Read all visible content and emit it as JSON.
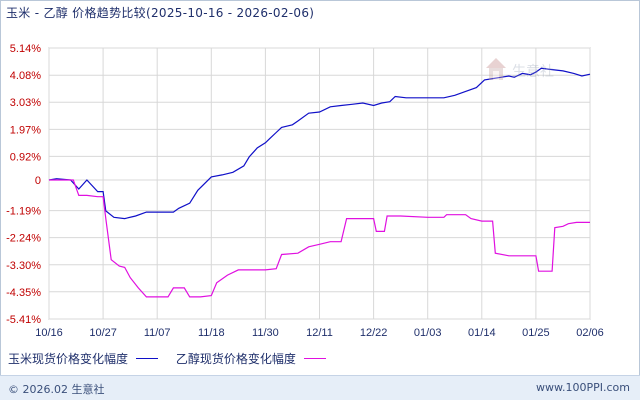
{
  "header": {
    "title": "玉米 - 乙醇 价格趋势比较(2025-10-16 - 2026-02-06)"
  },
  "chart_data": {
    "type": "line",
    "ylim": [
      -5.41,
      5.14
    ],
    "yticks": [
      5.14,
      4.08,
      3.03,
      1.97,
      0.92,
      0,
      -1.19,
      -2.24,
      -3.3,
      -4.35,
      -5.41
    ],
    "ytick_labels": [
      "5.14%",
      "4.08%",
      "3.03%",
      "1.97%",
      "0.92%",
      "0",
      "-1.19%",
      "-2.24%",
      "-3.30%",
      "-4.35%",
      "-5.41%"
    ],
    "x_categories": [
      "10/16",
      "10/27",
      "11/07",
      "11/18",
      "11/30",
      "12/11",
      "12/22",
      "01/03",
      "01/14",
      "01/25",
      "02/06"
    ],
    "grid": true,
    "legend_position": "bottom",
    "series": [
      {
        "name": "玉米现货价格变化幅度",
        "color": "#1010c8",
        "points": [
          [
            0,
            0.0
          ],
          [
            0.14,
            0.05
          ],
          [
            0.4,
            0.0
          ],
          [
            0.55,
            -0.35
          ],
          [
            0.7,
            0.0
          ],
          [
            0.9,
            -0.45
          ],
          [
            1.0,
            -0.45
          ],
          [
            1.05,
            -1.2
          ],
          [
            1.2,
            -1.45
          ],
          [
            1.4,
            -1.5
          ],
          [
            1.6,
            -1.4
          ],
          [
            1.8,
            -1.25
          ],
          [
            2.0,
            -1.25
          ],
          [
            2.3,
            -1.25
          ],
          [
            2.4,
            -1.1
          ],
          [
            2.6,
            -0.9
          ],
          [
            2.75,
            -0.4
          ],
          [
            3.0,
            0.12
          ],
          [
            3.2,
            0.2
          ],
          [
            3.4,
            0.3
          ],
          [
            3.6,
            0.55
          ],
          [
            3.7,
            0.9
          ],
          [
            3.85,
            1.25
          ],
          [
            4.0,
            1.45
          ],
          [
            4.1,
            1.65
          ],
          [
            4.2,
            1.85
          ],
          [
            4.3,
            2.05
          ],
          [
            4.5,
            2.15
          ],
          [
            4.6,
            2.3
          ],
          [
            4.8,
            2.6
          ],
          [
            5.0,
            2.65
          ],
          [
            5.2,
            2.85
          ],
          [
            5.4,
            2.9
          ],
          [
            5.6,
            2.95
          ],
          [
            5.8,
            3.0
          ],
          [
            6.0,
            2.9
          ],
          [
            6.15,
            3.0
          ],
          [
            6.3,
            3.05
          ],
          [
            6.4,
            3.25
          ],
          [
            6.6,
            3.2
          ],
          [
            6.8,
            3.2
          ],
          [
            7.0,
            3.2
          ],
          [
            7.3,
            3.2
          ],
          [
            7.5,
            3.3
          ],
          [
            7.7,
            3.45
          ],
          [
            7.9,
            3.6
          ],
          [
            8.05,
            3.9
          ],
          [
            8.2,
            3.95
          ],
          [
            8.35,
            4.0
          ],
          [
            8.5,
            4.05
          ],
          [
            8.6,
            4.0
          ],
          [
            8.75,
            4.15
          ],
          [
            8.9,
            4.1
          ],
          [
            9.0,
            4.2
          ],
          [
            9.1,
            4.35
          ],
          [
            9.3,
            4.3
          ],
          [
            9.5,
            4.25
          ],
          [
            9.7,
            4.15
          ],
          [
            9.85,
            4.05
          ],
          [
            10.0,
            4.12
          ]
        ]
      },
      {
        "name": "乙醇现货价格变化幅度",
        "color": "#e010e0",
        "points": [
          [
            0,
            0.0
          ],
          [
            0.45,
            0.0
          ],
          [
            0.55,
            -0.6
          ],
          [
            0.7,
            -0.6
          ],
          [
            0.9,
            -0.65
          ],
          [
            1.0,
            -0.65
          ],
          [
            1.05,
            -1.5
          ],
          [
            1.15,
            -3.1
          ],
          [
            1.3,
            -3.35
          ],
          [
            1.4,
            -3.4
          ],
          [
            1.5,
            -3.8
          ],
          [
            1.65,
            -4.2
          ],
          [
            1.8,
            -4.55
          ],
          [
            2.0,
            -4.55
          ],
          [
            2.2,
            -4.55
          ],
          [
            2.3,
            -4.2
          ],
          [
            2.5,
            -4.2
          ],
          [
            2.6,
            -4.55
          ],
          [
            2.8,
            -4.55
          ],
          [
            3.0,
            -4.5
          ],
          [
            3.1,
            -4.0
          ],
          [
            3.3,
            -3.7
          ],
          [
            3.5,
            -3.5
          ],
          [
            3.7,
            -3.5
          ],
          [
            4.0,
            -3.5
          ],
          [
            4.2,
            -3.45
          ],
          [
            4.3,
            -2.9
          ],
          [
            4.6,
            -2.85
          ],
          [
            4.8,
            -2.6
          ],
          [
            5.0,
            -2.5
          ],
          [
            5.2,
            -2.4
          ],
          [
            5.4,
            -2.4
          ],
          [
            5.5,
            -1.5
          ],
          [
            6.0,
            -1.5
          ],
          [
            6.05,
            -2.0
          ],
          [
            6.2,
            -2.0
          ],
          [
            6.25,
            -1.4
          ],
          [
            6.5,
            -1.4
          ],
          [
            7.0,
            -1.45
          ],
          [
            7.3,
            -1.45
          ],
          [
            7.35,
            -1.35
          ],
          [
            7.7,
            -1.35
          ],
          [
            7.8,
            -1.5
          ],
          [
            8.0,
            -1.6
          ],
          [
            8.2,
            -1.6
          ],
          [
            8.25,
            -2.85
          ],
          [
            8.5,
            -2.95
          ],
          [
            8.8,
            -2.95
          ],
          [
            9.0,
            -2.95
          ],
          [
            9.05,
            -3.55
          ],
          [
            9.3,
            -3.55
          ],
          [
            9.35,
            -1.85
          ],
          [
            9.5,
            -1.8
          ],
          [
            9.6,
            -1.7
          ],
          [
            9.75,
            -1.65
          ],
          [
            10.0,
            -1.65
          ]
        ]
      }
    ]
  },
  "legend": {
    "items": [
      {
        "label": "玉米现货价格变化幅度",
        "color": "#1010c8"
      },
      {
        "label": "乙醇现货价格变化幅度",
        "color": "#e010e0"
      }
    ]
  },
  "watermark": {
    "text": "生意社"
  },
  "footer": {
    "left": "© 2026.02 生意社",
    "right": "www.100PPI.com"
  },
  "colors": {
    "axis_label": "#c00000",
    "xtick_label": "#1f2f6b",
    "grid": "#d8d8d8"
  }
}
